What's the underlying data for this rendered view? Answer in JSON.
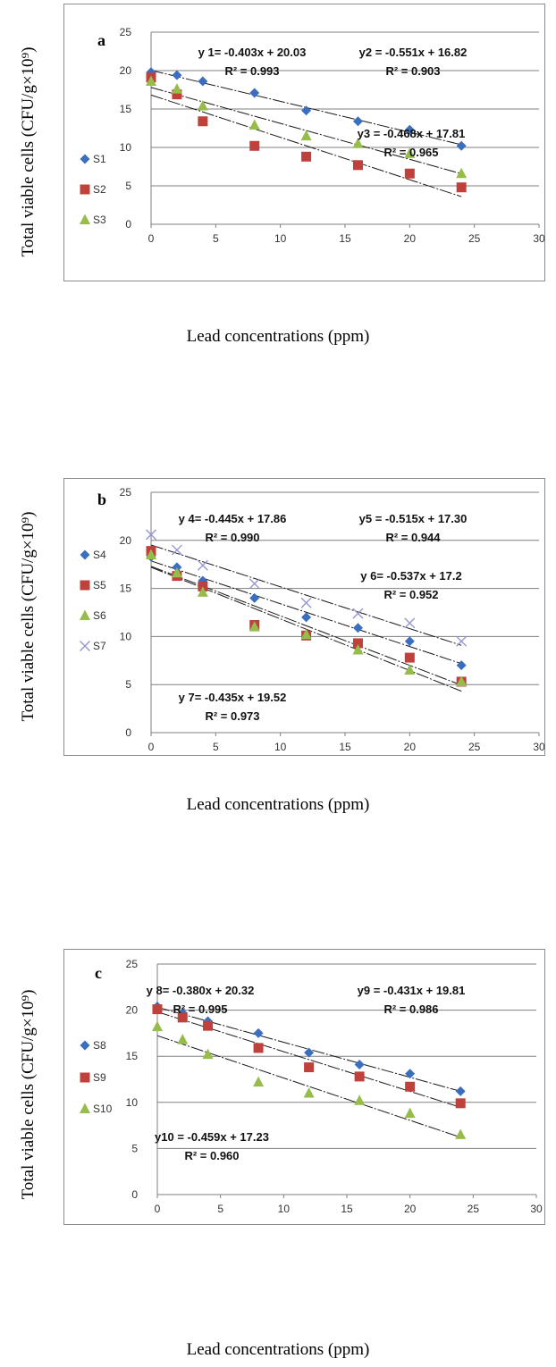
{
  "y_axis_label": "Total viable cells (CFU/g×10⁹)",
  "x_axis_label": "Lead concentrations (ppm)",
  "colors": {
    "diamond": "#3a6ebf",
    "square": "#c0403c",
    "triangle": "#96bc4a",
    "cross": "#9696d2",
    "grid": "#7f7f7f",
    "axis": "#7f7f7f"
  },
  "chart_data": [
    {
      "type": "scatter",
      "panel": "a",
      "xlim": [
        0,
        30
      ],
      "ylim": [
        0,
        25
      ],
      "xticks": [
        0,
        5,
        10,
        15,
        20,
        25,
        30
      ],
      "yticks": [
        0,
        5,
        10,
        15,
        20,
        25
      ],
      "grid": "horizontal",
      "legend_position": "left",
      "series": [
        {
          "name": "S1",
          "marker": "diamond",
          "x": [
            0,
            2,
            4,
            8,
            12,
            16,
            20,
            24
          ],
          "y": [
            19.8,
            19.4,
            18.6,
            17.1,
            14.8,
            13.4,
            12.3,
            10.2
          ],
          "trend": {
            "slope": -0.403,
            "intercept": 20.03
          }
        },
        {
          "name": "S2",
          "marker": "square",
          "x": [
            0,
            2,
            4,
            8,
            12,
            16,
            20,
            24
          ],
          "y": [
            19.1,
            16.9,
            13.4,
            10.2,
            8.8,
            7.7,
            6.6,
            4.8
          ],
          "trend": {
            "slope": -0.551,
            "intercept": 16.82
          }
        },
        {
          "name": "S3",
          "marker": "triangle",
          "x": [
            0,
            2,
            4,
            8,
            12,
            16,
            20,
            24
          ],
          "y": [
            18.6,
            17.6,
            15.4,
            12.9,
            11.5,
            10.5,
            9.2,
            6.6
          ],
          "trend": {
            "slope": -0.468,
            "intercept": 17.81
          }
        }
      ],
      "annotations": [
        {
          "eq": "y 1= -0.403x + 20.03",
          "r2": "R² = 0.993"
        },
        {
          "eq": "y2 = -0.551x + 16.82",
          "r2": "R² = 0.903"
        },
        {
          "eq": "y3 = -0.468x + 17.81",
          "r2": "R² = 0.965"
        }
      ]
    },
    {
      "type": "scatter",
      "panel": "b",
      "xlim": [
        0,
        30
      ],
      "ylim": [
        0,
        25
      ],
      "xticks": [
        0,
        5,
        10,
        15,
        20,
        25,
        30
      ],
      "yticks": [
        0,
        5,
        10,
        15,
        20,
        25
      ],
      "grid": "horizontal",
      "legend_position": "left",
      "series": [
        {
          "name": "S4",
          "marker": "diamond",
          "x": [
            0,
            2,
            4,
            8,
            12,
            16,
            20,
            24
          ],
          "y": [
            18.3,
            17.2,
            15.8,
            14.0,
            12.0,
            10.9,
            9.5,
            7.0
          ],
          "trend": {
            "slope": -0.445,
            "intercept": 17.86
          }
        },
        {
          "name": "S5",
          "marker": "square",
          "x": [
            0,
            2,
            4,
            8,
            12,
            16,
            20,
            24
          ],
          "y": [
            18.9,
            16.3,
            15.2,
            11.2,
            10.1,
            9.3,
            7.8,
            5.3
          ],
          "trend": {
            "slope": -0.515,
            "intercept": 17.3
          }
        },
        {
          "name": "S6",
          "marker": "triangle",
          "x": [
            0,
            2,
            4,
            8,
            12,
            16,
            20,
            24
          ],
          "y": [
            18.5,
            16.6,
            14.6,
            11.0,
            10.2,
            8.6,
            6.5,
            5.3
          ],
          "trend": {
            "slope": -0.537,
            "intercept": 17.2
          }
        },
        {
          "name": "S7",
          "marker": "cross",
          "x": [
            0,
            2,
            4,
            8,
            12,
            16,
            20,
            24
          ],
          "y": [
            20.6,
            19.0,
            17.4,
            15.5,
            13.5,
            12.4,
            11.4,
            9.5
          ],
          "trend": {
            "slope": -0.435,
            "intercept": 19.52
          }
        }
      ],
      "annotations": [
        {
          "eq": "y 4= -0.445x + 17.86",
          "r2": "R² = 0.990"
        },
        {
          "eq": "y5 = -0.515x + 17.30",
          "r2": "R² = 0.944"
        },
        {
          "eq": "y 6= -0.537x + 17.2",
          "r2": "R² = 0.952"
        },
        {
          "eq": "y 7= -0.435x + 19.52",
          "r2": "R² = 0.973"
        }
      ]
    },
    {
      "type": "scatter",
      "panel": "c",
      "xlim": [
        0,
        30
      ],
      "ylim": [
        0,
        25
      ],
      "xticks": [
        0,
        5,
        10,
        15,
        20,
        25,
        30
      ],
      "yticks": [
        0,
        5,
        10,
        15,
        20,
        25
      ],
      "grid": "horizontal",
      "legend_position": "left",
      "series": [
        {
          "name": "S8",
          "marker": "diamond",
          "x": [
            0,
            2,
            4,
            8,
            12,
            16,
            20,
            24
          ],
          "y": [
            20.4,
            19.7,
            18.8,
            17.5,
            15.4,
            14.1,
            13.1,
            11.2
          ],
          "trend": {
            "slope": -0.38,
            "intercept": 20.32
          }
        },
        {
          "name": "S9",
          "marker": "square",
          "x": [
            0,
            2,
            4,
            8,
            12,
            16,
            20,
            24
          ],
          "y": [
            20.1,
            19.2,
            18.3,
            15.9,
            13.8,
            12.8,
            11.7,
            9.9
          ],
          "trend": {
            "slope": -0.431,
            "intercept": 19.81
          }
        },
        {
          "name": "S10",
          "marker": "triangle",
          "x": [
            0,
            2,
            4,
            8,
            12,
            16,
            20,
            24
          ],
          "y": [
            18.2,
            16.8,
            15.2,
            12.2,
            11.0,
            10.2,
            8.8,
            6.5
          ],
          "trend": {
            "slope": -0.459,
            "intercept": 17.23
          }
        }
      ],
      "annotations": [
        {
          "eq": "y 8= -0.380x + 20.32",
          "r2": "R² = 0.995"
        },
        {
          "eq": "y9 = -0.431x + 19.81",
          "r2": "R² = 0.986"
        },
        {
          "eq": "y10 = -0.459x + 17.23",
          "r2": "R² = 0.960"
        }
      ]
    }
  ]
}
